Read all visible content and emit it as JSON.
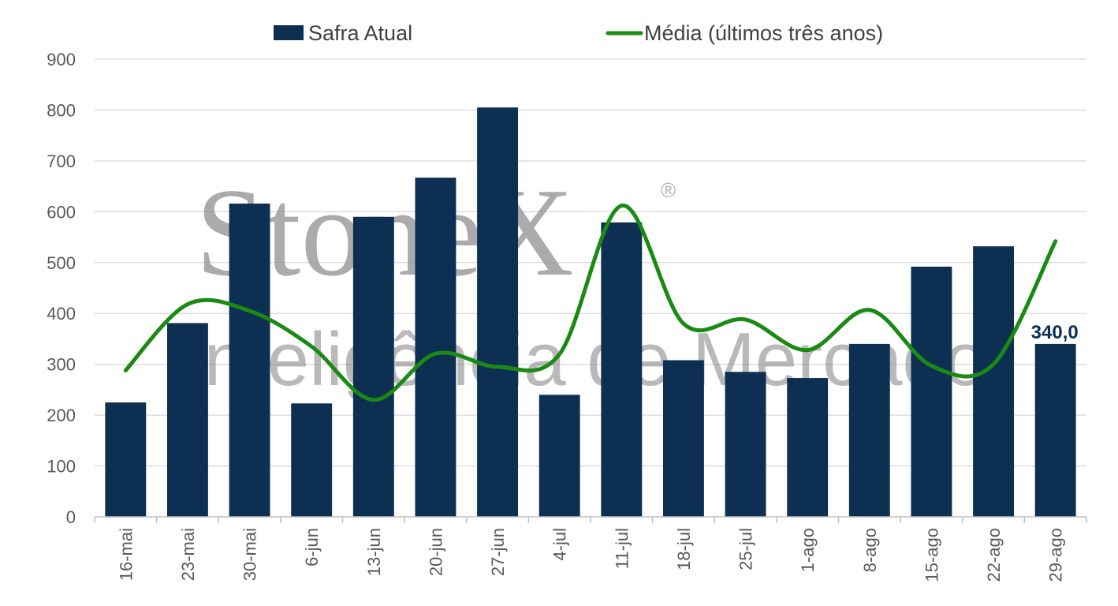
{
  "watermark": {
    "logo": "StoneX",
    "registered": "®",
    "subtitle": "Inteligência de Mercado"
  },
  "colors": {
    "bar": "#0c2f52",
    "line": "#1a8a14",
    "grid": "#d9d9d9"
  },
  "chart_data": {
    "type": "bar",
    "title": "",
    "xlabel": "",
    "ylabel": "",
    "ylim": [
      0,
      900
    ],
    "yticks": [
      0,
      100,
      200,
      300,
      400,
      500,
      600,
      700,
      800,
      900
    ],
    "grid": true,
    "legend_position": "top",
    "categories": [
      "16-mai",
      "23-mai",
      "30-mai",
      "6-jun",
      "13-jun",
      "20-jun",
      "27-jun",
      "4-jul",
      "11-jul",
      "18-jul",
      "25-jul",
      "1-ago",
      "8-ago",
      "15-ago",
      "22-ago",
      "29-ago"
    ],
    "series": [
      {
        "name": "Safra Atual",
        "type": "bar",
        "values": [
          225,
          381,
          616,
          223,
          590,
          667,
          805,
          240,
          579,
          308,
          285,
          273,
          340,
          492,
          532,
          340
        ]
      },
      {
        "name": "Média (últimos três anos)",
        "type": "line",
        "smooth": true,
        "values": [
          288,
          418,
          405,
          335,
          230,
          321,
          295,
          320,
          612,
          380,
          388,
          328,
          407,
          297,
          300,
          542
        ]
      }
    ],
    "annotations": [
      {
        "category": "29-ago",
        "series": "Safra Atual",
        "label": "340,0"
      }
    ]
  }
}
